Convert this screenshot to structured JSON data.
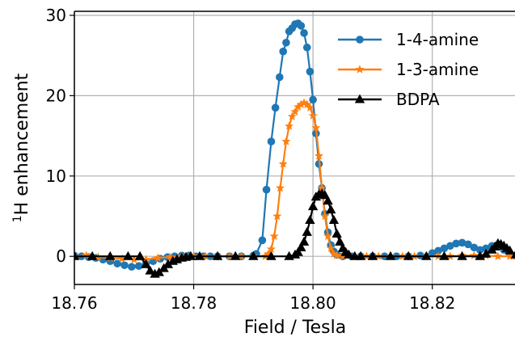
{
  "chart_data": {
    "type": "line",
    "title": "",
    "xlabel": "Field / Tesla",
    "ylabel_prefix": "1",
    "ylabel_main": "H enhancement",
    "xlim": [
      18.76,
      18.834
    ],
    "ylim": [
      -3.5,
      30.5
    ],
    "xticks": [
      18.76,
      18.78,
      18.8,
      18.82
    ],
    "xtick_labels": [
      "18.76",
      "18.78",
      "18.80",
      "18.82"
    ],
    "yticks": [
      0,
      10,
      20,
      30
    ],
    "ytick_labels": [
      "0",
      "10",
      "20",
      "30"
    ],
    "grid": true,
    "legend_position": "top-right",
    "series": [
      {
        "name": "1-4-amine",
        "color": "#1f77b4",
        "marker": "circle",
        "x": [
          18.76,
          18.7612,
          18.7624,
          18.7636,
          18.7648,
          18.766,
          18.7672,
          18.7684,
          18.7696,
          18.7708,
          18.772,
          18.7732,
          18.7744,
          18.7756,
          18.7768,
          18.778,
          18.7792,
          18.7804,
          18.7816,
          18.7828,
          18.784,
          18.786,
          18.788,
          18.79,
          18.7905,
          18.7915,
          18.7922,
          18.793,
          18.7937,
          18.7944,
          18.795,
          18.7955,
          18.796,
          18.7965,
          18.797,
          18.7975,
          18.798,
          18.7985,
          18.799,
          18.7995,
          18.8,
          18.8005,
          18.801,
          18.8015,
          18.802,
          18.8025,
          18.803,
          18.8035,
          18.804,
          18.805,
          18.8065,
          18.808,
          18.81,
          18.812,
          18.814,
          18.816,
          18.818,
          18.82,
          18.821,
          18.822,
          18.823,
          18.824,
          18.825,
          18.826,
          18.827,
          18.828,
          18.829,
          18.83,
          18.831,
          18.832,
          18.833,
          18.834
        ],
        "y": [
          0.1,
          0.0,
          -0.1,
          -0.2,
          -0.4,
          -0.6,
          -0.9,
          -1.1,
          -1.3,
          -1.2,
          -0.9,
          -0.6,
          -0.3,
          -0.1,
          0.0,
          0.1,
          0.1,
          0.0,
          0.0,
          0.0,
          0.0,
          0.0,
          0.0,
          0.1,
          0.3,
          2.0,
          8.3,
          14.3,
          18.5,
          22.3,
          25.5,
          26.6,
          28.0,
          28.4,
          28.9,
          29.0,
          28.7,
          27.8,
          26.0,
          23.0,
          19.5,
          15.3,
          11.5,
          8.5,
          5.3,
          3.0,
          1.4,
          0.6,
          0.2,
          0.0,
          0.0,
          0.0,
          0.0,
          0.0,
          0.0,
          0.0,
          0.1,
          0.4,
          0.7,
          1.0,
          1.3,
          1.6,
          1.7,
          1.5,
          1.1,
          0.8,
          1.0,
          1.3,
          1.2,
          0.8,
          0.4,
          0.1
        ]
      },
      {
        "name": "1-3-amine",
        "color": "#ff7f0e",
        "marker": "star",
        "x": [
          18.76,
          18.762,
          18.764,
          18.766,
          18.768,
          18.77,
          18.772,
          18.774,
          18.776,
          18.778,
          18.78,
          18.782,
          18.784,
          18.786,
          18.788,
          18.79,
          18.792,
          18.7925,
          18.793,
          18.7935,
          18.794,
          18.7945,
          18.795,
          18.7955,
          18.796,
          18.7965,
          18.797,
          18.7975,
          18.798,
          18.7985,
          18.799,
          18.7995,
          18.8,
          18.8005,
          18.801,
          18.8015,
          18.802,
          18.8025,
          18.803,
          18.8035,
          18.804,
          18.805,
          18.807,
          18.809,
          18.811,
          18.813,
          18.815,
          18.817,
          18.819,
          18.821,
          18.823,
          18.825,
          18.827,
          18.829,
          18.831,
          18.833,
          18.834
        ],
        "y": [
          0.0,
          0.1,
          -0.1,
          -0.2,
          -0.3,
          -0.4,
          -0.4,
          -0.2,
          -0.1,
          0.0,
          0.0,
          0.0,
          0.0,
          0.0,
          0.0,
          0.0,
          0.0,
          0.3,
          0.9,
          2.5,
          5.0,
          8.5,
          11.5,
          14.3,
          16.2,
          17.4,
          18.0,
          18.6,
          18.9,
          19.1,
          18.9,
          18.5,
          17.5,
          16.0,
          12.5,
          8.5,
          5.0,
          2.5,
          1.0,
          0.3,
          0.1,
          0.0,
          0.0,
          0.0,
          0.0,
          0.0,
          0.0,
          0.0,
          0.0,
          0.0,
          0.0,
          0.1,
          0.1,
          0.1,
          0.0,
          0.0,
          0.0
        ]
      },
      {
        "name": "BDPA",
        "color": "#000000",
        "marker": "triangle",
        "x": [
          18.76,
          18.763,
          18.766,
          18.769,
          18.771,
          18.772,
          18.7727,
          18.7735,
          18.7742,
          18.775,
          18.7757,
          18.7765,
          18.7772,
          18.778,
          18.7787,
          18.7795,
          18.781,
          18.784,
          18.787,
          18.79,
          18.793,
          18.796,
          18.797,
          18.7975,
          18.798,
          18.7985,
          18.799,
          18.7995,
          18.8,
          18.8005,
          18.801,
          18.8015,
          18.802,
          18.8025,
          18.803,
          18.8035,
          18.804,
          18.8045,
          18.805,
          18.8055,
          18.806,
          18.807,
          18.808,
          18.81,
          18.813,
          18.816,
          18.819,
          18.822,
          18.825,
          18.828,
          18.829,
          18.83,
          18.8305,
          18.831,
          18.8315,
          18.832,
          18.8325,
          18.833,
          18.834
        ],
        "y": [
          0.0,
          0.0,
          0.0,
          0.0,
          0.0,
          -1.0,
          -1.8,
          -2.2,
          -2.0,
          -1.5,
          -1.0,
          -0.6,
          -0.4,
          -0.2,
          -0.1,
          0.0,
          0.0,
          0.0,
          0.0,
          0.0,
          0.0,
          0.0,
          0.2,
          0.5,
          1.1,
          1.8,
          3.0,
          4.5,
          6.2,
          7.4,
          7.7,
          7.8,
          7.6,
          6.9,
          5.8,
          4.5,
          2.8,
          1.8,
          1.0,
          0.5,
          0.2,
          0.0,
          0.0,
          0.0,
          0.0,
          0.0,
          0.0,
          0.0,
          0.0,
          0.0,
          0.3,
          0.8,
          1.2,
          1.6,
          1.5,
          1.3,
          1.0,
          0.7,
          0.2
        ]
      }
    ]
  }
}
